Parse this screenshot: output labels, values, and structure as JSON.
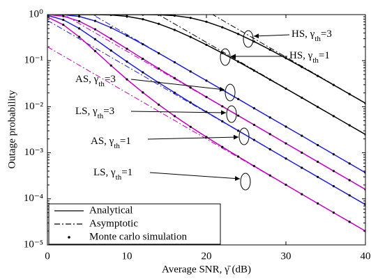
{
  "chart_data": {
    "type": "line",
    "xlabel": "Average SNR, γ̄ (dB)",
    "ylabel": "Outage probability",
    "x": [
      0,
      2,
      4,
      6,
      8,
      10,
      12,
      14,
      16,
      18,
      20,
      22,
      24,
      26,
      28,
      30,
      32,
      34,
      36,
      38,
      40
    ],
    "xlim": [
      0,
      40
    ],
    "xticks": [
      0,
      10,
      20,
      30,
      40
    ],
    "ylim": [
      1e-05,
      1
    ],
    "yticks": [
      {
        "value": 1,
        "label": "10⁰"
      },
      {
        "value": 0.1,
        "label": "10⁻¹"
      },
      {
        "value": 0.01,
        "label": "10⁻²"
      },
      {
        "value": 0.001,
        "label": "10⁻³"
      },
      {
        "value": 0.0001,
        "label": "10⁻⁴"
      },
      {
        "value": 1e-05,
        "label": "10⁻⁵"
      }
    ],
    "log_y": true,
    "grid": false,
    "legend": {
      "position": "lower left",
      "entries": [
        "Analytical",
        "Asymptotic",
        "Monte carlo simulation"
      ]
    },
    "series": [
      {
        "color": "#000000",
        "values": [
          1,
          1,
          1,
          1,
          1,
          1,
          0.9995,
          0.9916,
          0.951,
          0.85,
          0.699,
          0.531,
          0.38,
          0.26,
          0.173,
          0.113,
          0.0729,
          0.0467,
          0.0297,
          0.0188,
          0.0119
        ],
        "asymptote": {
          "x": [
            0,
            40
          ],
          "values": [
            120,
            0.012
          ]
        }
      },
      {
        "color": "#000000",
        "values": [
          1,
          1,
          1,
          0.9981,
          0.981,
          0.918,
          0.794,
          0.63,
          0.466,
          0.327,
          0.221,
          0.146,
          0.0947,
          0.0609,
          0.0388,
          0.0247,
          0.0157,
          0.0099,
          0.00626,
          0.00395,
          0.0025
        ],
        "asymptote": {
          "x": [
            0,
            40
          ],
          "values": [
            25,
            0.0025
          ]
        }
      },
      {
        "color": "#1f1fd6",
        "values": [
          0.9999,
          0.9911,
          0.9114,
          0.7296,
          0.521,
          0.349,
          0.227,
          0.145,
          0.0922,
          0.0582,
          0.0369,
          0.0233,
          0.0147,
          0.00925,
          0.00584,
          0.0037,
          0.00234,
          0.00147,
          0.000929,
          0.000585,
          0.00037
        ],
        "asymptote": {
          "x": [
            0,
            40
          ],
          "values": [
            3.7,
            0.00037
          ]
        }
      },
      {
        "color": "#1f1fd6",
        "values": [
          0.961,
          0.77,
          0.501,
          0.292,
          0.166,
          0.0952,
          0.0557,
          0.0332,
          0.0202,
          0.0124,
          0.00772,
          0.00482,
          0.00302,
          0.0019,
          0.00119,
          0.00075,
          0.000473,
          0.000299,
          0.000188,
          0.000119,
          7.5e-05
        ],
        "asymptote": {
          "x": [
            0,
            40
          ],
          "values": [
            0.75,
            7.5e-05
          ]
        }
      },
      {
        "color": "#c000c0",
        "values": [
          0.9963,
          0.926,
          0.719,
          0.48,
          0.298,
          0.181,
          0.11,
          0.0676,
          0.0418,
          0.026,
          0.0163,
          0.0102,
          0.00641,
          0.00404,
          0.00254,
          0.0016,
          0.00101,
          0.000637,
          0.000402,
          0.000254,
          0.00016
        ],
        "asymptote": {
          "x": [
            0,
            40
          ],
          "values": [
            1.6,
            0.00016
          ]
        }
      },
      {
        "color": "#c000c0",
        "values": [
          0.889,
          0.602,
          0.328,
          0.162,
          0.0786,
          0.0392,
          0.0204,
          0.0111,
          0.00626,
          0.00366,
          0.0022,
          0.00134,
          0.000828,
          0.000515,
          0.000322,
          0.000202,
          0.000126,
          7.96e-05,
          5.02e-05,
          3.17e-05,
          2e-05
        ],
        "asymptote": {
          "x": [
            0,
            40
          ],
          "values": [
            0.2,
            2e-05
          ]
        }
      }
    ],
    "annotations": [
      {
        "parts": [
          "HS, γ",
          "th",
          "=3"
        ]
      },
      {
        "parts": [
          "HS, γ",
          "th",
          "=1"
        ]
      },
      {
        "parts": [
          "AS, γ",
          "th",
          "=3"
        ]
      },
      {
        "parts": [
          "LS, γ",
          "th",
          "=3"
        ]
      },
      {
        "parts": [
          "AS, γ",
          "th",
          "=1"
        ]
      },
      {
        "parts": [
          "LS, γ",
          "th",
          "=1"
        ]
      }
    ]
  }
}
